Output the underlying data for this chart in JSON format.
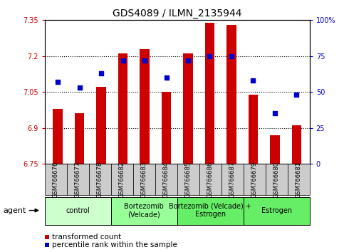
{
  "title": "GDS4089 / ILMN_2135944",
  "samples": [
    "GSM766676",
    "GSM766677",
    "GSM766678",
    "GSM766682",
    "GSM766683",
    "GSM766684",
    "GSM766685",
    "GSM766686",
    "GSM766687",
    "GSM766679",
    "GSM766680",
    "GSM766681"
  ],
  "bar_values": [
    6.98,
    6.96,
    7.07,
    7.21,
    7.23,
    7.05,
    7.21,
    7.34,
    7.33,
    7.04,
    6.87,
    6.91
  ],
  "percentile_values": [
    57,
    53,
    63,
    72,
    72,
    60,
    72,
    75,
    75,
    58,
    35,
    48
  ],
  "bar_bottom": 6.75,
  "ylim_left": [
    6.75,
    7.35
  ],
  "ylim_right": [
    0,
    100
  ],
  "yticks_left": [
    6.75,
    6.9,
    7.05,
    7.2,
    7.35
  ],
  "ytick_labels_left": [
    "6.75",
    "6.9",
    "7.05",
    "7.2",
    "7.35"
  ],
  "yticks_right": [
    0,
    25,
    50,
    75,
    100
  ],
  "ytick_labels_right": [
    "0",
    "25",
    "50",
    "75",
    "100%"
  ],
  "hlines": [
    6.9,
    7.05,
    7.2
  ],
  "bar_color": "#CC0000",
  "dot_color": "#0000CC",
  "groups": [
    {
      "label": "control",
      "start": 0,
      "end": 3,
      "color": "#CCFFCC"
    },
    {
      "label": "Bortezomib\n(Velcade)",
      "start": 3,
      "end": 6,
      "color": "#99FF99"
    },
    {
      "label": "Bortezomib (Velcade) +\nEstrogen",
      "start": 6,
      "end": 9,
      "color": "#66EE66"
    },
    {
      "label": "Estrogen",
      "start": 9,
      "end": 12,
      "color": "#66EE66"
    }
  ],
  "legend_bar_label": "transformed count",
  "legend_dot_label": "percentile rank within the sample",
  "agent_label": "agent",
  "bar_width": 0.45,
  "dot_size": 16,
  "xlim": [
    -0.6,
    11.6
  ],
  "title_fontsize": 10,
  "tick_label_fontsize": 7,
  "group_label_fontsize": 7,
  "legend_fontsize": 7.5,
  "sample_fontsize": 6,
  "axis_label_fontsize": 7
}
